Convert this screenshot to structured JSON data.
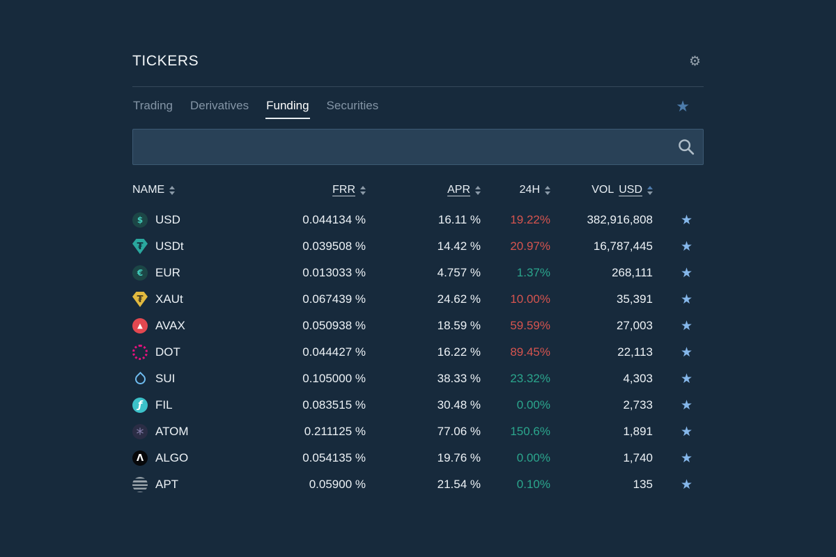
{
  "panel": {
    "title": "TICKERS",
    "tabs": [
      {
        "label": "Trading",
        "active": false
      },
      {
        "label": "Derivatives",
        "active": false
      },
      {
        "label": "Funding",
        "active": true
      },
      {
        "label": "Securities",
        "active": false
      }
    ],
    "search": {
      "value": "",
      "placeholder": ""
    },
    "table": {
      "columns": [
        {
          "id": "name",
          "label": "NAME",
          "align": "left",
          "sortable": true,
          "underlined": false
        },
        {
          "id": "frr",
          "label": "FRR",
          "align": "right",
          "sortable": true,
          "underlined": true
        },
        {
          "id": "apr",
          "label": "APR",
          "align": "right",
          "sortable": true,
          "underlined": true
        },
        {
          "id": "chg24h",
          "label": "24H",
          "align": "right",
          "sortable": true,
          "underlined": false
        },
        {
          "id": "vol",
          "label_prefix": "VOL",
          "label": "USD",
          "align": "right",
          "sortable": true,
          "underlined": true,
          "sort_active": true
        }
      ],
      "rows": [
        {
          "currency": "USD",
          "icon": "usd-dollar-circle-icon",
          "icon_glyph": "$",
          "frr": "0.044134 %",
          "apr": "16.11 %",
          "change_24h": "19.22%",
          "change_direction": "down",
          "volume_usd": "382,916,808",
          "favorited": true
        },
        {
          "currency": "USDt",
          "icon": "tether-shield-icon",
          "icon_glyph": "₮",
          "frr": "0.039508 %",
          "apr": "14.42 %",
          "change_24h": "20.97%",
          "change_direction": "down",
          "volume_usd": "16,787,445",
          "favorited": true
        },
        {
          "currency": "EUR",
          "icon": "euro-circle-icon",
          "icon_glyph": "€",
          "frr": "0.013033 %",
          "apr": "4.757 %",
          "change_24h": "1.37%",
          "change_direction": "up",
          "volume_usd": "268,111",
          "favorited": true
        },
        {
          "currency": "XAUt",
          "icon": "gold-tether-shield-icon",
          "icon_glyph": "₮",
          "frr": "0.067439 %",
          "apr": "24.62 %",
          "change_24h": "10.00%",
          "change_direction": "down",
          "volume_usd": "35,391",
          "favorited": true
        },
        {
          "currency": "AVAX",
          "icon": "avalanche-icon",
          "icon_glyph": "▲",
          "frr": "0.050938 %",
          "apr": "18.59 %",
          "change_24h": "59.59%",
          "change_direction": "down",
          "volume_usd": "27,003",
          "favorited": true
        },
        {
          "currency": "DOT",
          "icon": "polkadot-icon",
          "icon_glyph": "",
          "frr": "0.044427 %",
          "apr": "16.22 %",
          "change_24h": "89.45%",
          "change_direction": "down",
          "volume_usd": "22,113",
          "favorited": true
        },
        {
          "currency": "SUI",
          "icon": "sui-drop-icon",
          "icon_glyph": "",
          "frr": "0.105000 %",
          "apr": "38.33 %",
          "change_24h": "23.32%",
          "change_direction": "up",
          "volume_usd": "4,303",
          "favorited": true
        },
        {
          "currency": "FIL",
          "icon": "filecoin-icon",
          "icon_glyph": "ƒ",
          "frr": "0.083515 %",
          "apr": "30.48 %",
          "change_24h": "0.00%",
          "change_direction": "up",
          "volume_usd": "2,733",
          "favorited": true
        },
        {
          "currency": "ATOM",
          "icon": "cosmos-icon",
          "icon_glyph": "*",
          "frr": "0.211125 %",
          "apr": "77.06 %",
          "change_24h": "150.6%",
          "change_direction": "up",
          "volume_usd": "1,891",
          "favorited": true
        },
        {
          "currency": "ALGO",
          "icon": "algorand-icon",
          "icon_glyph": "Λ",
          "frr": "0.054135 %",
          "apr": "19.76 %",
          "change_24h": "0.00%",
          "change_direction": "up",
          "volume_usd": "1,740",
          "favorited": true
        },
        {
          "currency": "APT",
          "icon": "aptos-icon",
          "icon_glyph": "",
          "frr": "0.05900 %",
          "apr": "21.54 %",
          "change_24h": "0.10%",
          "change_direction": "up",
          "volume_usd": "135",
          "favorited": true
        }
      ]
    }
  },
  "glyphs": {
    "gear": "⚙",
    "star": "★"
  },
  "colors": {
    "background": "#172A3C",
    "positive": "#2BA68D",
    "negative": "#D6544F",
    "row_star": "#85B7EA",
    "tab_star": "#4D7CAB",
    "sort_active": "#4E7BAC",
    "search_box": "#294157",
    "muted_text": "#8495A6"
  }
}
